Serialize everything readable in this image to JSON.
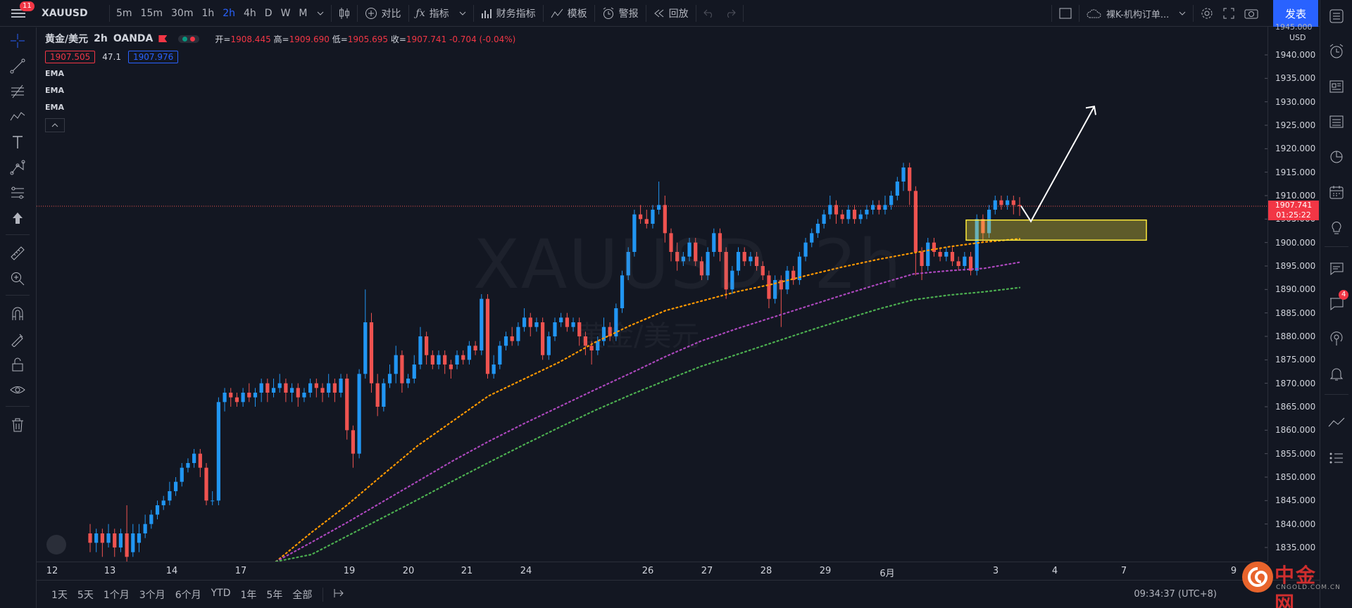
{
  "toolbar": {
    "menu_badge": "11",
    "symbol": "XAUUSD",
    "intervals": [
      "5m",
      "15m",
      "30m",
      "1h",
      "2h",
      "4h",
      "D",
      "W",
      "M"
    ],
    "active_interval": "2h",
    "compare": "对比",
    "indicators": "指标",
    "financials": "财务指标",
    "templates": "模板",
    "alert": "警报",
    "replay": "回放",
    "layout_name": "裸K-机构订单...",
    "publish": "发表"
  },
  "legend": {
    "title": "黄金/美元",
    "interval": "2h",
    "exchange": "OANDA",
    "open_label": "开=",
    "open": "1908.445",
    "high_label": "高=",
    "high": "1909.690",
    "low_label": "低=",
    "low": "1905.695",
    "close_label": "收=",
    "close": "1907.741",
    "change": "-0.704 (-0.04%)",
    "bid": "1907.505",
    "spread": "47.1",
    "ask": "1907.976",
    "indicators": [
      "EMA",
      "EMA",
      "EMA"
    ]
  },
  "price_axis": {
    "currency": "USD",
    "top_partial": "1945.000",
    "ticks": [
      "1940.000",
      "1935.000",
      "1930.000",
      "1925.000",
      "1920.000",
      "1915.000",
      "1910.000",
      "1905.000",
      "1900.000",
      "1895.000",
      "1890.000",
      "1885.000",
      "1880.000",
      "1875.000",
      "1870.000",
      "1865.000",
      "1860.000",
      "1855.000",
      "1850.000",
      "1845.000",
      "1840.000",
      "1835.000"
    ],
    "last_price": "1907.741",
    "countdown": "01:25:22"
  },
  "time_axis": {
    "ticks": [
      "12",
      "13",
      "14",
      "17",
      "19",
      "20",
      "21",
      "24",
      "26",
      "27",
      "28",
      "29",
      "6月",
      "3",
      "4",
      "7",
      "9"
    ]
  },
  "bottom": {
    "ranges": [
      "1天",
      "5天",
      "1个月",
      "3个月",
      "6个月",
      "YTD",
      "1年",
      "5年",
      "全部"
    ],
    "clock": "09:34:37 (UTC+8)"
  },
  "watermark": {
    "symbol": "XAUUSD, 2h",
    "name": "黄金/美元"
  },
  "logo": {
    "name": "中金网",
    "url": "CNGOLD.COM.CN"
  },
  "right_badge": "4",
  "colors": {
    "up": "#2196f3",
    "down": "#ef5350",
    "ema1": "#ff9800",
    "ema2": "#ab47bc",
    "ema3": "#4caf50",
    "zone": "#ffeb3b",
    "background": "#131722"
  },
  "chart_data": {
    "type": "candlestick",
    "price_range": [
      1832,
      1946
    ],
    "last_price": 1907.741,
    "ohlc": [
      [
        1838,
        1836,
        1840,
        1834
      ],
      [
        1836,
        1838,
        1839,
        1834
      ],
      [
        1838,
        1836,
        1839,
        1833
      ],
      [
        1836,
        1838,
        1840,
        1835
      ],
      [
        1838,
        1835,
        1839,
        1833
      ],
      [
        1835,
        1838,
        1839,
        1834
      ],
      [
        1838,
        1833,
        1844,
        1832
      ],
      [
        1834,
        1838,
        1840,
        1833
      ],
      [
        1836,
        1838,
        1840,
        1834
      ],
      [
        1838,
        1840,
        1842,
        1837
      ],
      [
        1840,
        1842,
        1843,
        1839
      ],
      [
        1842,
        1844,
        1845,
        1841
      ],
      [
        1844,
        1845,
        1846,
        1843
      ],
      [
        1845,
        1847,
        1849,
        1844
      ],
      [
        1847,
        1849,
        1850,
        1846
      ],
      [
        1849,
        1852,
        1853,
        1848
      ],
      [
        1852,
        1853,
        1854,
        1851
      ],
      [
        1853,
        1855,
        1856,
        1852
      ],
      [
        1855,
        1852,
        1856,
        1850
      ],
      [
        1852,
        1845,
        1853,
        1844
      ],
      [
        1845,
        1845,
        1847,
        1844
      ],
      [
        1845,
        1866,
        1867,
        1844
      ],
      [
        1866,
        1868,
        1869,
        1864
      ],
      [
        1868,
        1867,
        1869,
        1865
      ],
      [
        1867,
        1866,
        1868,
        1865
      ],
      [
        1866,
        1868,
        1869,
        1865
      ],
      [
        1868,
        1867,
        1870,
        1866
      ],
      [
        1867,
        1868,
        1869,
        1865
      ],
      [
        1868,
        1870,
        1871,
        1866
      ],
      [
        1870,
        1868,
        1871,
        1866
      ],
      [
        1868,
        1869,
        1871,
        1867
      ],
      [
        1869,
        1870,
        1872,
        1868
      ],
      [
        1870,
        1868,
        1871,
        1866
      ],
      [
        1868,
        1869,
        1870,
        1866
      ],
      [
        1869,
        1867,
        1870,
        1865
      ],
      [
        1867,
        1868,
        1869,
        1866
      ],
      [
        1868,
        1870,
        1871,
        1867
      ],
      [
        1870,
        1869,
        1871,
        1867
      ],
      [
        1869,
        1868,
        1870,
        1866
      ],
      [
        1868,
        1870,
        1872,
        1867
      ],
      [
        1870,
        1868,
        1871,
        1866
      ],
      [
        1868,
        1871,
        1872,
        1867
      ],
      [
        1871,
        1860,
        1872,
        1858
      ],
      [
        1860,
        1855,
        1861,
        1852
      ],
      [
        1855,
        1872,
        1873,
        1854
      ],
      [
        1872,
        1883,
        1890,
        1871
      ],
      [
        1883,
        1870,
        1885,
        1868
      ],
      [
        1870,
        1865,
        1872,
        1863
      ],
      [
        1865,
        1870,
        1871,
        1864
      ],
      [
        1870,
        1872,
        1874,
        1869
      ],
      [
        1872,
        1876,
        1878,
        1870
      ],
      [
        1876,
        1870,
        1877,
        1868
      ],
      [
        1870,
        1871,
        1872,
        1869
      ],
      [
        1871,
        1874,
        1876,
        1870
      ],
      [
        1874,
        1880,
        1882,
        1873
      ],
      [
        1880,
        1876,
        1881,
        1874
      ],
      [
        1876,
        1874,
        1877,
        1873
      ],
      [
        1874,
        1876,
        1877,
        1873
      ],
      [
        1876,
        1874,
        1877,
        1872
      ],
      [
        1874,
        1873,
        1875,
        1871
      ],
      [
        1874,
        1876,
        1877,
        1873
      ],
      [
        1876,
        1875,
        1877,
        1874
      ],
      [
        1875,
        1878,
        1879,
        1874
      ],
      [
        1878,
        1877,
        1879,
        1876
      ],
      [
        1877,
        1888,
        1889,
        1876
      ],
      [
        1888,
        1872,
        1889,
        1871
      ],
      [
        1872,
        1874,
        1876,
        1871
      ],
      [
        1874,
        1878,
        1879,
        1873
      ],
      [
        1878,
        1880,
        1881,
        1877
      ],
      [
        1880,
        1879,
        1882,
        1878
      ],
      [
        1879,
        1882,
        1883,
        1878
      ],
      [
        1882,
        1884,
        1886,
        1881
      ],
      [
        1884,
        1882,
        1885,
        1880
      ],
      [
        1882,
        1883,
        1884,
        1881
      ],
      [
        1883,
        1876,
        1884,
        1875
      ],
      [
        1876,
        1880,
        1881,
        1875
      ],
      [
        1880,
        1883,
        1884,
        1879
      ],
      [
        1883,
        1884,
        1885,
        1882
      ],
      [
        1884,
        1882,
        1885,
        1881
      ],
      [
        1882,
        1883,
        1884,
        1881
      ],
      [
        1883,
        1880,
        1884,
        1878
      ],
      [
        1880,
        1878,
        1881,
        1876
      ],
      [
        1878,
        1877,
        1879,
        1874
      ],
      [
        1877,
        1879,
        1880,
        1876
      ],
      [
        1879,
        1882,
        1884,
        1878
      ],
      [
        1882,
        1880,
        1883,
        1879
      ],
      [
        1880,
        1886,
        1887,
        1879
      ],
      [
        1886,
        1893,
        1894,
        1885
      ],
      [
        1893,
        1898,
        1899,
        1892
      ],
      [
        1898,
        1906,
        1907,
        1897
      ],
      [
        1906,
        1905,
        1908,
        1904
      ],
      [
        1905,
        1904,
        1907,
        1903
      ],
      [
        1904,
        1907,
        1908,
        1903
      ],
      [
        1907,
        1908,
        1913,
        1906
      ],
      [
        1908,
        1902,
        1910,
        1900
      ],
      [
        1902,
        1898,
        1903,
        1896
      ],
      [
        1898,
        1896,
        1900,
        1894
      ],
      [
        1896,
        1897,
        1898,
        1895
      ],
      [
        1897,
        1900,
        1901,
        1896
      ],
      [
        1900,
        1896,
        1901,
        1895
      ],
      [
        1896,
        1893,
        1897,
        1892
      ],
      [
        1893,
        1898,
        1899,
        1892
      ],
      [
        1898,
        1902,
        1903,
        1897
      ],
      [
        1902,
        1898,
        1903,
        1896
      ],
      [
        1898,
        1890,
        1899,
        1888
      ],
      [
        1890,
        1894,
        1895,
        1889
      ],
      [
        1894,
        1898,
        1899,
        1893
      ],
      [
        1898,
        1896,
        1899,
        1895
      ],
      [
        1896,
        1897,
        1898,
        1895
      ],
      [
        1897,
        1895,
        1898,
        1894
      ],
      [
        1895,
        1893,
        1896,
        1892
      ],
      [
        1893,
        1888,
        1894,
        1886
      ],
      [
        1888,
        1892,
        1893,
        1887
      ],
      [
        1892,
        1890,
        1893,
        1882
      ],
      [
        1890,
        1894,
        1895,
        1889
      ],
      [
        1894,
        1892,
        1895,
        1891
      ],
      [
        1892,
        1897,
        1898,
        1891
      ],
      [
        1897,
        1900,
        1901,
        1896
      ],
      [
        1900,
        1902,
        1903,
        1899
      ],
      [
        1902,
        1904,
        1905,
        1901
      ],
      [
        1904,
        1906,
        1907,
        1903
      ],
      [
        1906,
        1908,
        1910,
        1905
      ],
      [
        1908,
        1906,
        1909,
        1904
      ],
      [
        1906,
        1905,
        1907,
        1904
      ],
      [
        1905,
        1907,
        1908,
        1904
      ],
      [
        1907,
        1905,
        1908,
        1904
      ],
      [
        1905,
        1906,
        1907,
        1904
      ],
      [
        1906,
        1907,
        1908,
        1905
      ],
      [
        1907,
        1908,
        1909,
        1906
      ],
      [
        1908,
        1907,
        1909,
        1906
      ],
      [
        1907,
        1908,
        1910,
        1906
      ],
      [
        1908,
        1910,
        1911,
        1907
      ],
      [
        1910,
        1913,
        1914,
        1909
      ],
      [
        1913,
        1916,
        1917,
        1911
      ],
      [
        1916,
        1911,
        1917,
        1908
      ],
      [
        1911,
        1898,
        1912,
        1893
      ],
      [
        1898,
        1895,
        1899,
        1892
      ],
      [
        1895,
        1900,
        1901,
        1894
      ],
      [
        1900,
        1898,
        1901,
        1897
      ],
      [
        1898,
        1897,
        1899,
        1896
      ],
      [
        1897,
        1898,
        1899,
        1896
      ],
      [
        1898,
        1896,
        1899,
        1895
      ],
      [
        1896,
        1895,
        1897,
        1894
      ],
      [
        1895,
        1897,
        1898,
        1894
      ],
      [
        1897,
        1894,
        1898,
        1893
      ],
      [
        1894,
        1905,
        1906,
        1893
      ],
      [
        1905,
        1902,
        1906,
        1900
      ],
      [
        1902,
        1907,
        1908,
        1901
      ],
      [
        1907,
        1909,
        1910,
        1906
      ],
      [
        1909,
        1908,
        1910,
        1907
      ],
      [
        1908,
        1909,
        1910,
        1907
      ],
      [
        1909,
        1908,
        1910,
        1906
      ],
      [
        1908,
        1907.741,
        1909.69,
        1905.695
      ]
    ],
    "ema_fast": [
      1832.0,
      1838.2,
      1844.0,
      1850.4,
      1856.7,
      1862.0,
      1867.3,
      1870.9,
      1874.5,
      1878.7,
      1882.3,
      1885.5,
      1887.5,
      1889.5,
      1891.1,
      1893.0,
      1894.8,
      1896.4,
      1897.8,
      1899.1,
      1900.1,
      1900.8
    ],
    "ema_mid": [
      1832.0,
      1836.1,
      1840.3,
      1844.7,
      1849.1,
      1853.5,
      1857.6,
      1861.4,
      1865.0,
      1868.6,
      1872.1,
      1875.7,
      1879.0,
      1881.6,
      1884.0,
      1886.4,
      1888.8,
      1891.1,
      1893.3,
      1894.0,
      1894.5,
      1895.8
    ],
    "ema_slow": [
      1832.0,
      1833.5,
      1837.4,
      1841.3,
      1845.2,
      1849.2,
      1853.1,
      1856.9,
      1860.6,
      1864.2,
      1867.5,
      1870.6,
      1873.6,
      1876.1,
      1878.6,
      1881.1,
      1883.5,
      1885.8,
      1887.8,
      1888.8,
      1889.5,
      1890.4
    ],
    "zone": {
      "from_price": 1900.5,
      "to_price": 1904.8
    },
    "arrow": {
      "from_price": 1904.5,
      "to_price": 1929.0
    }
  }
}
